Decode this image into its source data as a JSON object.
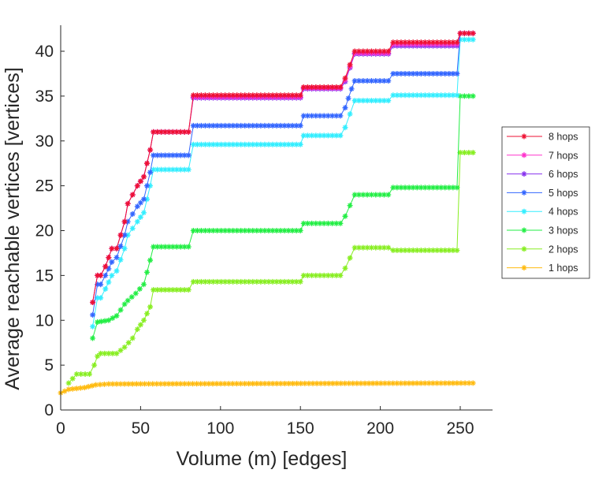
{
  "chart_data": {
    "type": "line",
    "title": "",
    "xlabel": "Volume (m) [edges]",
    "ylabel": "Average reachable vertices [vertices]",
    "xlim": [
      0,
      270
    ],
    "ylim": [
      0,
      43
    ],
    "xticks": [
      "0",
      "50",
      "100",
      "150",
      "200",
      "250"
    ],
    "xtick_values": [
      0,
      50,
      100,
      150,
      200,
      250
    ],
    "yticks": [
      "0",
      "5",
      "10",
      "15",
      "20",
      "25",
      "30",
      "35",
      "40"
    ],
    "ytick_values": [
      0,
      5,
      10,
      15,
      20,
      25,
      30,
      35,
      40
    ],
    "grid": false,
    "legend_position": "right",
    "series": [
      {
        "name": "8 hops",
        "color": "#ee1133",
        "points": [
          [
            20,
            12
          ],
          [
            23,
            15
          ],
          [
            25,
            15
          ],
          [
            28,
            16
          ],
          [
            32,
            18
          ],
          [
            35,
            18
          ],
          [
            40,
            21
          ],
          [
            42,
            23
          ],
          [
            48,
            25
          ],
          [
            52,
            26
          ],
          [
            56,
            29
          ],
          [
            58,
            31
          ],
          [
            80,
            31
          ],
          [
            83,
            35.1
          ],
          [
            150,
            35.1
          ],
          [
            152,
            36
          ],
          [
            175,
            36
          ],
          [
            178,
            37
          ],
          [
            184,
            40
          ],
          [
            205,
            40
          ],
          [
            208,
            41
          ],
          [
            248,
            41
          ],
          [
            250,
            42
          ],
          [
            258,
            42
          ]
        ]
      },
      {
        "name": "7 hops",
        "color": "#ff33cc",
        "points": [
          [
            20,
            12
          ],
          [
            23,
            15
          ],
          [
            25,
            15
          ],
          [
            28,
            16
          ],
          [
            32,
            18
          ],
          [
            35,
            18
          ],
          [
            40,
            21
          ],
          [
            42,
            23
          ],
          [
            48,
            25
          ],
          [
            52,
            26
          ],
          [
            56,
            29
          ],
          [
            58,
            31
          ],
          [
            80,
            31
          ],
          [
            83,
            34.9
          ],
          [
            150,
            34.9
          ],
          [
            152,
            35.9
          ],
          [
            175,
            35.9
          ],
          [
            178,
            36.8
          ],
          [
            184,
            39.8
          ],
          [
            205,
            39.8
          ],
          [
            208,
            40.8
          ],
          [
            248,
            40.8
          ],
          [
            250,
            42
          ],
          [
            258,
            42
          ]
        ]
      },
      {
        "name": "6 hops",
        "color": "#8833ee",
        "points": [
          [
            20,
            12
          ],
          [
            23,
            15
          ],
          [
            25,
            15
          ],
          [
            28,
            16
          ],
          [
            32,
            18
          ],
          [
            35,
            18
          ],
          [
            40,
            21
          ],
          [
            42,
            23
          ],
          [
            48,
            25
          ],
          [
            52,
            26
          ],
          [
            56,
            29
          ],
          [
            58,
            31
          ],
          [
            80,
            31
          ],
          [
            83,
            34.8
          ],
          [
            150,
            34.8
          ],
          [
            152,
            35.8
          ],
          [
            175,
            35.8
          ],
          [
            178,
            36.6
          ],
          [
            184,
            39.7
          ],
          [
            205,
            39.7
          ],
          [
            208,
            40.6
          ],
          [
            248,
            40.6
          ],
          [
            250,
            42
          ],
          [
            258,
            42
          ]
        ]
      },
      {
        "name": "5 hops",
        "color": "#3366ff",
        "points": [
          [
            20,
            10.6
          ],
          [
            23,
            14
          ],
          [
            25,
            14
          ],
          [
            28,
            15
          ],
          [
            32,
            16.5
          ],
          [
            35,
            17
          ],
          [
            40,
            19.5
          ],
          [
            42,
            21
          ],
          [
            48,
            22.7
          ],
          [
            52,
            23.5
          ],
          [
            56,
            26.5
          ],
          [
            58,
            28.4
          ],
          [
            80,
            28.4
          ],
          [
            83,
            31.7
          ],
          [
            150,
            31.7
          ],
          [
            152,
            32.8
          ],
          [
            175,
            32.8
          ],
          [
            178,
            33.7
          ],
          [
            182,
            35.8
          ],
          [
            184,
            36.7
          ],
          [
            205,
            36.7
          ],
          [
            208,
            37.5
          ],
          [
            248,
            37.5
          ],
          [
            250,
            42
          ],
          [
            258,
            42
          ]
        ]
      },
      {
        "name": "4 hops",
        "color": "#33eeff",
        "points": [
          [
            20,
            9.3
          ],
          [
            23,
            12.5
          ],
          [
            25,
            12.5
          ],
          [
            28,
            13.5
          ],
          [
            32,
            15
          ],
          [
            35,
            15.5
          ],
          [
            40,
            18
          ],
          [
            42,
            19.5
          ],
          [
            48,
            21
          ],
          [
            52,
            22
          ],
          [
            56,
            25
          ],
          [
            58,
            26.8
          ],
          [
            80,
            26.8
          ],
          [
            83,
            29.6
          ],
          [
            150,
            29.6
          ],
          [
            152,
            30.6
          ],
          [
            175,
            30.6
          ],
          [
            178,
            31.5
          ],
          [
            184,
            34.5
          ],
          [
            205,
            34.5
          ],
          [
            208,
            35.1
          ],
          [
            248,
            35.1
          ],
          [
            250,
            41.3
          ],
          [
            258,
            41.3
          ]
        ]
      },
      {
        "name": "3 hops",
        "color": "#22ee44",
        "points": [
          [
            20,
            8
          ],
          [
            23,
            9.8
          ],
          [
            30,
            10
          ],
          [
            35,
            10.5
          ],
          [
            40,
            11.8
          ],
          [
            42,
            12.2
          ],
          [
            47,
            13
          ],
          [
            52,
            14
          ],
          [
            56,
            16.7
          ],
          [
            58,
            18.2
          ],
          [
            80,
            18.2
          ],
          [
            83,
            20
          ],
          [
            150,
            20
          ],
          [
            152,
            20.8
          ],
          [
            175,
            20.8
          ],
          [
            178,
            21.6
          ],
          [
            184,
            24
          ],
          [
            205,
            24
          ],
          [
            208,
            24.8
          ],
          [
            248,
            24.8
          ],
          [
            250,
            35
          ],
          [
            258,
            35
          ]
        ]
      },
      {
        "name": "2 hops",
        "color": "#88ee22",
        "points": [
          [
            5,
            3
          ],
          [
            10,
            4
          ],
          [
            18,
            4
          ],
          [
            21,
            5
          ],
          [
            23,
            6
          ],
          [
            25,
            6.3
          ],
          [
            35,
            6.3
          ],
          [
            40,
            7
          ],
          [
            45,
            8
          ],
          [
            48,
            9
          ],
          [
            52,
            10
          ],
          [
            56,
            11.5
          ],
          [
            58,
            13.4
          ],
          [
            80,
            13.4
          ],
          [
            83,
            14.3
          ],
          [
            150,
            14.3
          ],
          [
            152,
            15
          ],
          [
            175,
            15
          ],
          [
            178,
            15.8
          ],
          [
            184,
            18.1
          ],
          [
            205,
            18.1
          ],
          [
            208,
            17.8
          ],
          [
            248,
            17.8
          ],
          [
            250,
            28.7
          ],
          [
            258,
            28.7
          ]
        ]
      },
      {
        "name": "1 hops",
        "color": "#ffbb11",
        "points": [
          [
            0,
            1.9
          ],
          [
            5,
            2.3
          ],
          [
            15,
            2.5
          ],
          [
            22,
            2.8
          ],
          [
            30,
            2.9
          ],
          [
            258,
            3.0
          ]
        ]
      }
    ]
  }
}
